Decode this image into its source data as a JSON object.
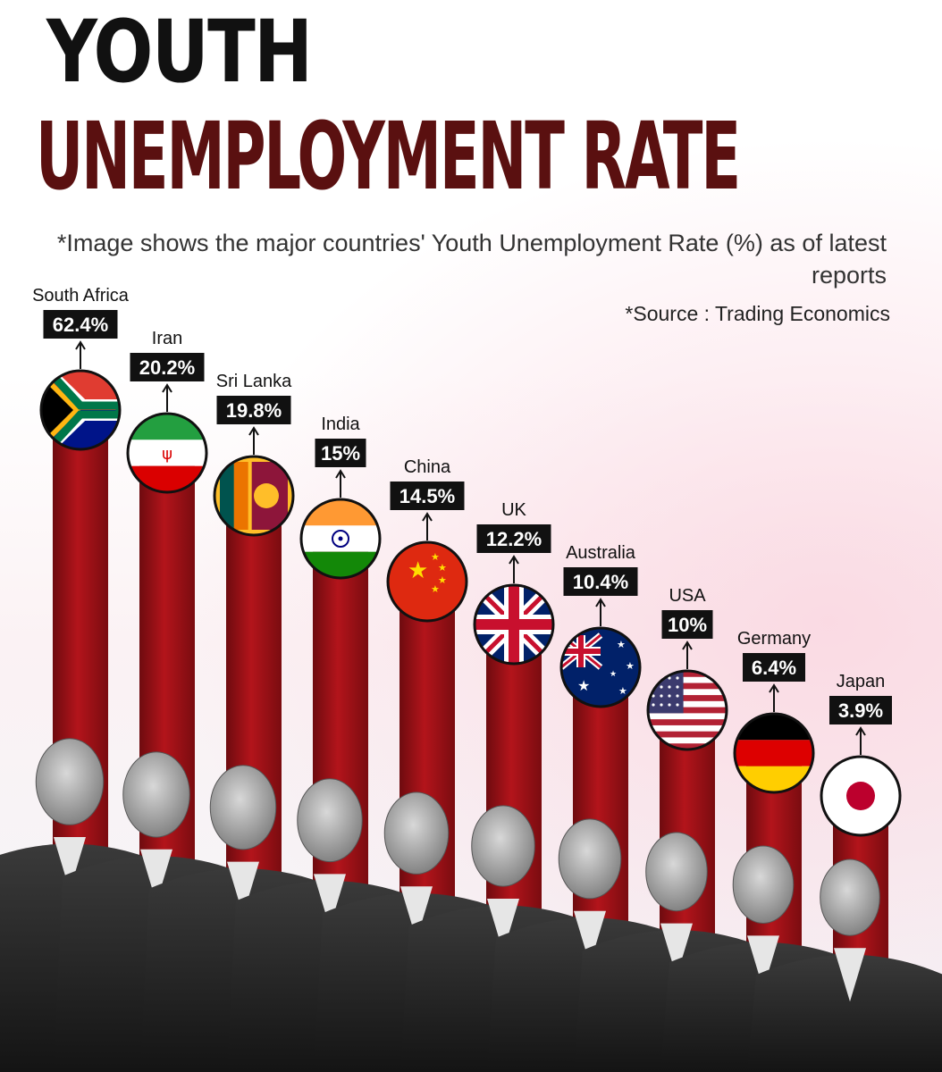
{
  "header": {
    "title_line1": "YOUTH",
    "title_line2": "UNEMPLOYMENT RATE",
    "subtitle": "*Image shows the major countries' Youth Unemployment Rate (%) as of latest reports",
    "source": "*Source : Trading Economics"
  },
  "colors": {
    "bar": "#a31218",
    "bar_dark": "#6e0b0f",
    "label_box": "#111111",
    "label_text": "#ffffff",
    "title_dark": "#111111",
    "title_red": "#5a1010"
  },
  "chart_data": {
    "type": "bar",
    "title": "YOUTH UNEMPLOYMENT RATE",
    "categories": [
      "South Africa",
      "Iran",
      "Sri Lanka",
      "India",
      "China",
      "UK",
      "Australia",
      "USA",
      "Germany",
      "Japan"
    ],
    "values": [
      62.4,
      20.2,
      19.8,
      15,
      14.5,
      12.2,
      10.4,
      10,
      6.4,
      3.9
    ],
    "value_labels": [
      "62.4%",
      "20.2%",
      "19.8%",
      "15%",
      "14.5%",
      "12.2%",
      "10.4%",
      "10%",
      "6.4%",
      "3.9%"
    ],
    "flag_icons": [
      "south-africa-flag-icon",
      "iran-flag-icon",
      "sri-lanka-flag-icon",
      "india-flag-icon",
      "china-flag-icon",
      "uk-flag-icon",
      "australia-flag-icon",
      "usa-flag-icon",
      "germany-flag-icon",
      "japan-flag-icon"
    ],
    "scale": "non-linear (rank order, bars not drawn to scale)",
    "grid": false,
    "legend": "none"
  }
}
